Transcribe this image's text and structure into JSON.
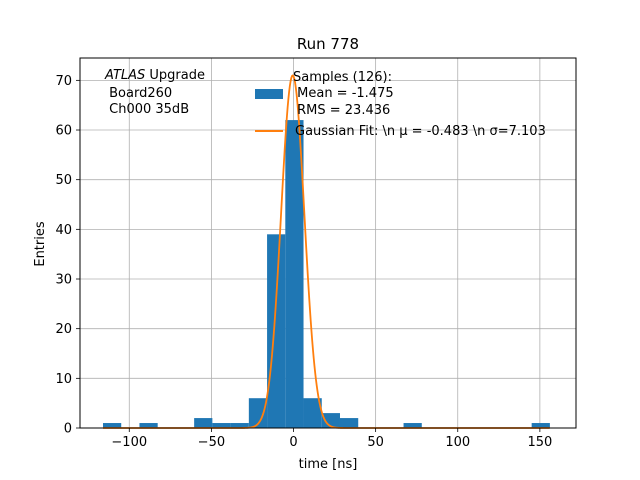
{
  "chart_data": {
    "type": "bar",
    "title": "Run 778",
    "xlabel": "time [ns]",
    "ylabel": "Entries",
    "xlim": [
      -130,
      172
    ],
    "ylim": [
      0,
      74.5
    ],
    "grid": true,
    "x_ticks": [
      -100,
      -50,
      0,
      50,
      100,
      150
    ],
    "x_tick_labels": [
      "−100",
      "−50",
      "0",
      "50",
      "100",
      "150"
    ],
    "y_ticks": [
      0,
      10,
      20,
      30,
      40,
      50,
      60,
      70
    ],
    "y_tick_labels": [
      "0",
      "10",
      "20",
      "30",
      "40",
      "50",
      "60",
      "70"
    ],
    "histogram": {
      "bin_width": 11.1,
      "bins": [
        {
          "left": -116.0,
          "count": 1
        },
        {
          "left": -93.8,
          "count": 1
        },
        {
          "left": -60.5,
          "count": 2
        },
        {
          "left": -49.4,
          "count": 1
        },
        {
          "left": -38.3,
          "count": 1
        },
        {
          "left": -27.2,
          "count": 6
        },
        {
          "left": -16.1,
          "count": 39
        },
        {
          "left": -5.0,
          "count": 62
        },
        {
          "left": 6.1,
          "count": 6
        },
        {
          "left": 17.2,
          "count": 3
        },
        {
          "left": 28.3,
          "count": 2
        },
        {
          "left": 67.0,
          "count": 1
        },
        {
          "left": 145.0,
          "count": 1
        }
      ],
      "color": "#1f77b4"
    },
    "fit": {
      "mu": -0.483,
      "sigma": 7.103,
      "amplitude": 71,
      "x_range": [
        -116,
        156
      ],
      "color": "#ff7f0e"
    },
    "legend": {
      "placement": "top-right",
      "entries": [
        {
          "kind": "patch",
          "color": "#1f77b4",
          "lines": [
            "Samples (126):",
            " Mean = -1.475",
            " RMS = 23.436"
          ]
        },
        {
          "kind": "line",
          "color": "#ff7f0e",
          "lines": [
            "Gaussian Fit: \\n μ = -0.483 \\n σ=7.103"
          ]
        }
      ]
    },
    "annotation": {
      "italic": "ATLAS",
      "rest": " Upgrade",
      "line2": " Board260",
      "line3": " Ch000 35dB"
    }
  }
}
